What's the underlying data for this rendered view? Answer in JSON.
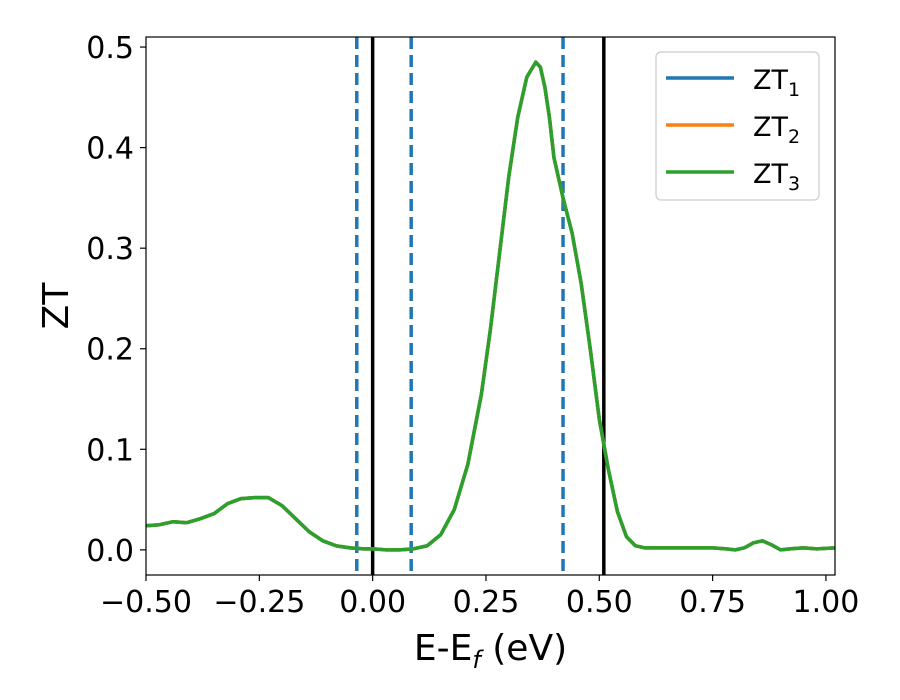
{
  "chart_data": {
    "type": "line",
    "xlabel": "E-E",
    "xlabel_sub": "f",
    "xlabel_suffix": " (eV)",
    "ylabel": "ZT",
    "xlim": [
      -0.5,
      1.02
    ],
    "ylim": [
      -0.025,
      0.51
    ],
    "x_ticks": [
      -0.5,
      -0.25,
      0.0,
      0.25,
      0.5,
      0.75,
      1.0
    ],
    "x_tick_labels": [
      "−0.50",
      "−0.25",
      "0.00",
      "0.25",
      "0.50",
      "0.75",
      "1.00"
    ],
    "y_ticks": [
      0.0,
      0.1,
      0.2,
      0.3,
      0.4,
      0.5
    ],
    "y_tick_labels": [
      "0.0",
      "0.1",
      "0.2",
      "0.3",
      "0.4",
      "0.5"
    ],
    "grid": false,
    "legend_position": "top-right",
    "vlines": [
      {
        "x": -0.035,
        "style": "dashed",
        "color": "#1f77b4"
      },
      {
        "x": 0.0,
        "style": "solid",
        "color": "#000000"
      },
      {
        "x": 0.085,
        "style": "dashed",
        "color": "#1f77b4"
      },
      {
        "x": 0.42,
        "style": "dashed",
        "color": "#1f77b4"
      },
      {
        "x": 0.51,
        "style": "solid",
        "color": "#000000"
      }
    ],
    "series": [
      {
        "name": "ZT",
        "name_sub": "1",
        "color": "#1f77b4",
        "x": [
          -0.5,
          -0.47,
          -0.44,
          -0.41,
          -0.38,
          -0.35,
          -0.32,
          -0.29,
          -0.26,
          -0.23,
          -0.2,
          -0.17,
          -0.14,
          -0.11,
          -0.08,
          -0.05,
          -0.02,
          0.0,
          0.03,
          0.06,
          0.09,
          0.12,
          0.15,
          0.18,
          0.21,
          0.24,
          0.26,
          0.28,
          0.3,
          0.32,
          0.34,
          0.36,
          0.37,
          0.38,
          0.39,
          0.4,
          0.42,
          0.44,
          0.46,
          0.48,
          0.5,
          0.52,
          0.54,
          0.56,
          0.58,
          0.6,
          0.63,
          0.66,
          0.69,
          0.72,
          0.75,
          0.78,
          0.8,
          0.82,
          0.84,
          0.86,
          0.88,
          0.9,
          0.92,
          0.95,
          0.98,
          1.02
        ],
        "y": [
          0.024,
          0.025,
          0.028,
          0.027,
          0.031,
          0.036,
          0.046,
          0.051,
          0.052,
          0.052,
          0.044,
          0.031,
          0.018,
          0.009,
          0.004,
          0.002,
          0.001,
          0.001,
          0.0,
          0.0,
          0.001,
          0.004,
          0.015,
          0.04,
          0.085,
          0.155,
          0.22,
          0.295,
          0.37,
          0.43,
          0.47,
          0.485,
          0.48,
          0.46,
          0.43,
          0.39,
          0.35,
          0.315,
          0.265,
          0.2,
          0.13,
          0.08,
          0.038,
          0.013,
          0.004,
          0.002,
          0.002,
          0.002,
          0.002,
          0.002,
          0.002,
          0.001,
          0.0,
          0.002,
          0.007,
          0.009,
          0.005,
          0.0,
          0.001,
          0.002,
          0.001,
          0.002
        ]
      },
      {
        "name": "ZT",
        "name_sub": "2",
        "color": "#ff7f0e",
        "x": [
          -0.5,
          -0.47,
          -0.44,
          -0.41,
          -0.38,
          -0.35,
          -0.32,
          -0.29,
          -0.26,
          -0.23,
          -0.2,
          -0.17,
          -0.14,
          -0.11,
          -0.08,
          -0.05,
          -0.02,
          0.0,
          0.03,
          0.06,
          0.09,
          0.12,
          0.15,
          0.18,
          0.21,
          0.24,
          0.26,
          0.28,
          0.3,
          0.32,
          0.34,
          0.36,
          0.37,
          0.38,
          0.39,
          0.4,
          0.42,
          0.44,
          0.46,
          0.48,
          0.5,
          0.52,
          0.54,
          0.56,
          0.58,
          0.6,
          0.63,
          0.66,
          0.69,
          0.72,
          0.75,
          0.78,
          0.8,
          0.82,
          0.84,
          0.86,
          0.88,
          0.9,
          0.92,
          0.95,
          0.98,
          1.02
        ],
        "y": [
          0.024,
          0.025,
          0.028,
          0.027,
          0.031,
          0.036,
          0.046,
          0.051,
          0.052,
          0.052,
          0.044,
          0.031,
          0.018,
          0.009,
          0.004,
          0.002,
          0.001,
          0.001,
          0.0,
          0.0,
          0.001,
          0.004,
          0.015,
          0.04,
          0.085,
          0.155,
          0.22,
          0.295,
          0.37,
          0.43,
          0.47,
          0.485,
          0.48,
          0.46,
          0.43,
          0.39,
          0.35,
          0.315,
          0.265,
          0.2,
          0.13,
          0.08,
          0.038,
          0.013,
          0.004,
          0.002,
          0.002,
          0.002,
          0.002,
          0.002,
          0.002,
          0.001,
          0.0,
          0.002,
          0.007,
          0.009,
          0.005,
          0.0,
          0.001,
          0.002,
          0.001,
          0.002
        ]
      },
      {
        "name": "ZT",
        "name_sub": "3",
        "color": "#2ca02c",
        "x": [
          -0.5,
          -0.47,
          -0.44,
          -0.41,
          -0.38,
          -0.35,
          -0.32,
          -0.29,
          -0.26,
          -0.23,
          -0.2,
          -0.17,
          -0.14,
          -0.11,
          -0.08,
          -0.05,
          -0.02,
          0.0,
          0.03,
          0.06,
          0.09,
          0.12,
          0.15,
          0.18,
          0.21,
          0.24,
          0.26,
          0.28,
          0.3,
          0.32,
          0.34,
          0.36,
          0.37,
          0.38,
          0.39,
          0.4,
          0.42,
          0.44,
          0.46,
          0.48,
          0.5,
          0.52,
          0.54,
          0.56,
          0.58,
          0.6,
          0.63,
          0.66,
          0.69,
          0.72,
          0.75,
          0.78,
          0.8,
          0.82,
          0.84,
          0.86,
          0.88,
          0.9,
          0.92,
          0.95,
          0.98,
          1.02
        ],
        "y": [
          0.024,
          0.025,
          0.028,
          0.027,
          0.031,
          0.036,
          0.046,
          0.051,
          0.052,
          0.052,
          0.044,
          0.031,
          0.018,
          0.009,
          0.004,
          0.002,
          0.001,
          0.001,
          0.0,
          0.0,
          0.001,
          0.004,
          0.015,
          0.04,
          0.085,
          0.155,
          0.22,
          0.295,
          0.37,
          0.43,
          0.47,
          0.485,
          0.48,
          0.46,
          0.43,
          0.39,
          0.35,
          0.315,
          0.265,
          0.2,
          0.13,
          0.08,
          0.038,
          0.013,
          0.004,
          0.002,
          0.002,
          0.002,
          0.002,
          0.002,
          0.002,
          0.001,
          0.0,
          0.002,
          0.007,
          0.009,
          0.005,
          0.0,
          0.001,
          0.002,
          0.001,
          0.002
        ]
      }
    ]
  }
}
